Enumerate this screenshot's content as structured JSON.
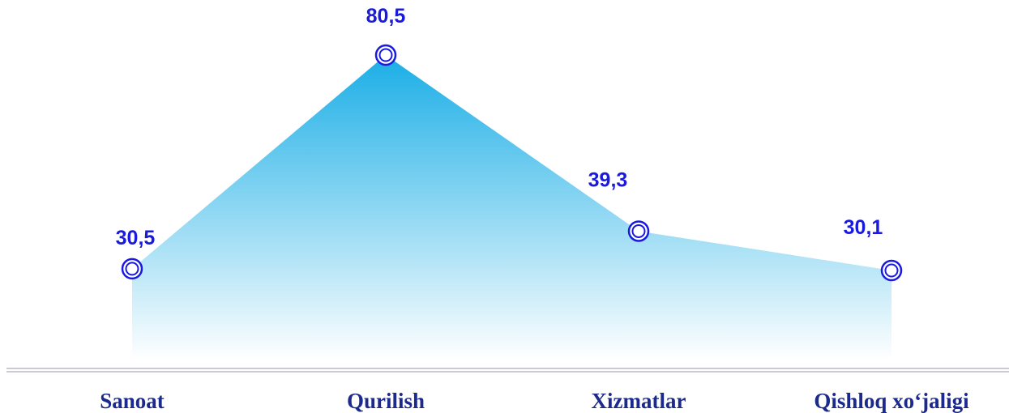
{
  "chart_data": {
    "type": "area",
    "categories": [
      "Sanoat",
      "Qurilish",
      "Xizmatlar",
      "Qishloq xo‘jaligi"
    ],
    "values": [
      30.5,
      80.5,
      39.3,
      30.1
    ],
    "value_labels": [
      "30,5",
      "80,5",
      "39,3",
      "30,1"
    ],
    "color": "#1aaee6",
    "marker_color": "#1a1adf"
  }
}
